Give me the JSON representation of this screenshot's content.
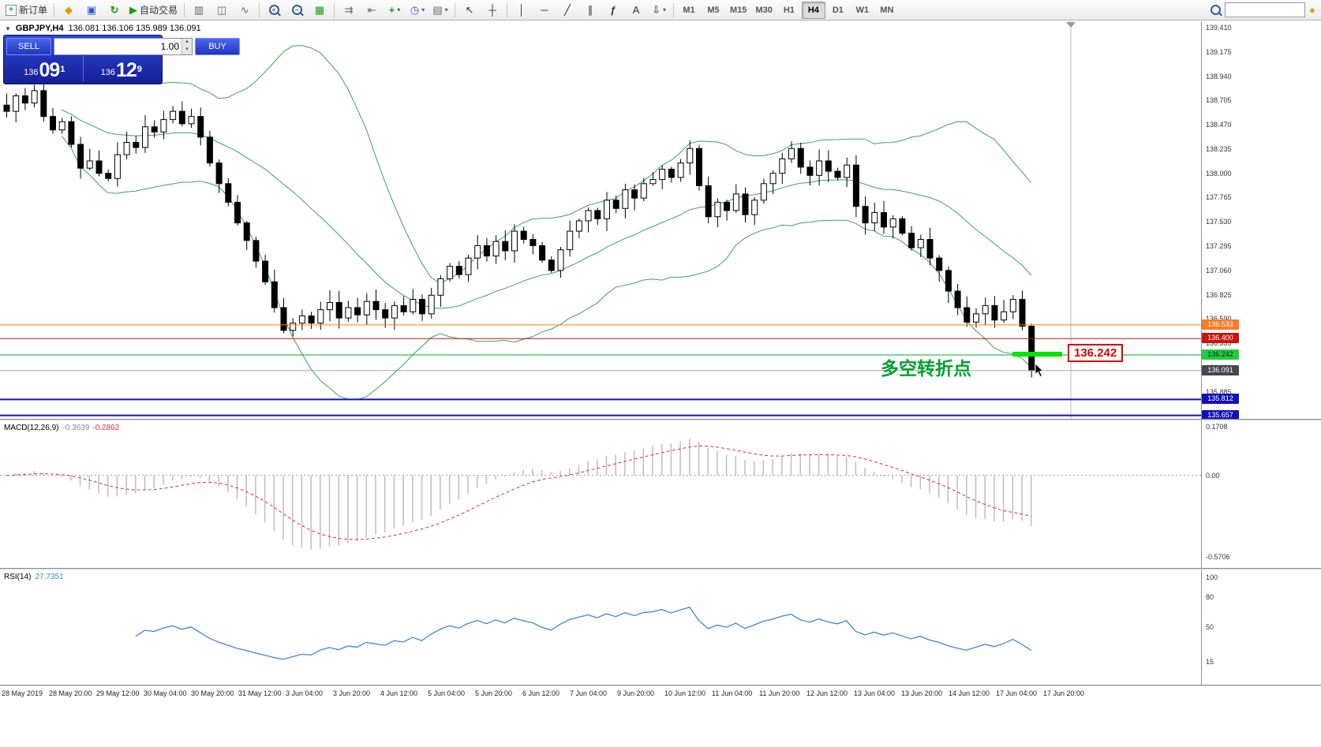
{
  "toolbar": {
    "new_order_label": "新订单",
    "auto_trading_label": "自动交易",
    "timeframes": [
      "M1",
      "M5",
      "M15",
      "M30",
      "H1",
      "H4",
      "D1",
      "W1",
      "MN"
    ],
    "active_timeframe": "H4",
    "search_placeholder": "",
    "icons": {
      "plus": "+",
      "minus": "−",
      "favorites": "◆",
      "data_window": "▣",
      "refresh": "↻",
      "auto_play": "▶",
      "bar_chart": "▥",
      "candlestick": "◫",
      "line_chart": "∿",
      "tile_windows": "▦",
      "auto_scroll": "⇉",
      "chart_shift": "⇤",
      "indicators_plus": "+",
      "periods_clock": "◷",
      "templates": "▤",
      "cursor": "↖",
      "crosshair": "┼",
      "vertical_line": "│",
      "horizontal_line": "─",
      "trend_line": "╱",
      "channel": "∥",
      "fibonacci": "ƒ",
      "text_tool": "A",
      "arrow_tool": "⇩",
      "shapes": "▭",
      "dropdown": "▾",
      "community": "●",
      "collapse": "▼",
      "spin_up": "▴",
      "spin_down": "▾"
    }
  },
  "trade_panel": {
    "sell_label": "SELL",
    "buy_label": "BUY",
    "volume": "1.00",
    "sell_price": {
      "prefix": "136",
      "big": "09",
      "sup": "1"
    },
    "buy_price": {
      "prefix": "136",
      "big": "12",
      "sup": "9"
    }
  },
  "chart": {
    "symbol_line": "GBPJPY,H4",
    "ohlc": "136.081 136.106 135.989 136.091",
    "annotation": "多空转折点",
    "price_tag": "136.242",
    "axis_ticks": [
      "139.410",
      "139.175",
      "138.940",
      "138.705",
      "138.470",
      "138.235",
      "138.000",
      "137.765",
      "137.530",
      "137.295",
      "137.060",
      "136.825",
      "136.590",
      "136.355",
      "136.120",
      "135.885",
      "135.650"
    ],
    "levels": [
      {
        "value": 136.533,
        "label": "136.533",
        "line_color": "#ff7a26",
        "chip_color": "#ff7a26",
        "chip_text": "#ffffff",
        "w": 1
      },
      {
        "value": 136.4,
        "label": "136.400",
        "line_color": "#cc1111",
        "chip_color": "#cc1111",
        "chip_text": "#ffffff",
        "w": 1
      },
      {
        "value": 136.242,
        "label": "136.242",
        "line_color": "#00a832",
        "chip_color": "#22cc44",
        "chip_text": "#062e06",
        "w": 1
      },
      {
        "value": 136.091,
        "label": "136.091",
        "line_color": "#a8a8a8",
        "chip_color": "#474753",
        "chip_text": "#ffffff",
        "w": 1
      },
      {
        "value": 135.812,
        "label": "135.812",
        "line_color": "#1111bb",
        "chip_color": "#1111bb",
        "chip_text": "#ffffff",
        "w": 2
      },
      {
        "value": 135.657,
        "label": "135.657",
        "line_color": "#1111bb",
        "chip_color": "#1111bb",
        "chip_text": "#ffffff",
        "w": 2
      }
    ]
  },
  "macd": {
    "label": "MACD(12,26,9)",
    "value_main": "-0.3639",
    "value_signal": "-0.2862",
    "axis": [
      "0.1708",
      "0.00",
      "-0.5706"
    ]
  },
  "rsi": {
    "label": "RSI(14)",
    "value": "27.7351",
    "axis": [
      "100",
      "80",
      "50",
      "15"
    ]
  },
  "time_axis": [
    "28 May 2019",
    "28 May 20:00",
    "29 May 12:00",
    "30 May 04:00",
    "30 May 20:00",
    "31 May 12:00",
    "3 Jun 04:00",
    "3 Jun 20:00",
    "4 Jun 12:00",
    "5 Jun 04:00",
    "5 Jun 20:00",
    "6 Jun 12:00",
    "7 Jun 04:00",
    "9 Jun 20:00",
    "10 Jun 12:00",
    "11 Jun 04:00",
    "11 Jun 20:00",
    "12 Jun 12:00",
    "13 Jun 04:00",
    "13 Jun 20:00",
    "14 Jun 12:00",
    "17 Jun 04:00",
    "17 Jun 20:00"
  ],
  "chart_data": {
    "type": "candlestick",
    "symbol": "GBPJPY",
    "timeframe": "H4",
    "current_bar": {
      "open": 136.081,
      "high": 136.106,
      "low": 135.989,
      "close": 136.091
    },
    "overlays": [
      "Bollinger Bands (20, 2.0)"
    ],
    "indicators": [
      "MACD(12,26,9)",
      "RSI(14)"
    ],
    "price_axis_range": [
      135.65,
      139.41
    ],
    "closes": [
      138.6,
      138.75,
      138.68,
      138.8,
      138.55,
      138.42,
      138.5,
      138.28,
      138.05,
      138.12,
      138.0,
      137.95,
      138.18,
      138.3,
      138.25,
      138.45,
      138.4,
      138.52,
      138.6,
      138.48,
      138.55,
      138.35,
      138.1,
      137.9,
      137.72,
      137.52,
      137.35,
      137.15,
      136.95,
      136.7,
      136.48,
      136.55,
      136.62,
      136.55,
      136.68,
      136.75,
      136.6,
      136.7,
      136.63,
      136.76,
      136.68,
      136.6,
      136.72,
      136.66,
      136.78,
      136.64,
      136.82,
      136.98,
      137.1,
      137.02,
      137.18,
      137.3,
      137.2,
      137.34,
      137.25,
      137.44,
      137.36,
      137.3,
      137.16,
      137.06,
      137.26,
      137.44,
      137.54,
      137.64,
      137.56,
      137.74,
      137.66,
      137.84,
      137.76,
      137.9,
      137.94,
      138.04,
      137.96,
      138.1,
      138.24,
      137.88,
      137.58,
      137.72,
      137.64,
      137.8,
      137.6,
      137.74,
      137.9,
      138.0,
      138.14,
      138.24,
      138.06,
      137.98,
      138.12,
      138.02,
      137.96,
      138.08,
      137.68,
      137.52,
      137.62,
      137.48,
      137.56,
      137.42,
      137.28,
      137.36,
      137.18,
      137.06,
      136.86,
      136.7,
      136.56,
      136.64,
      136.72,
      136.58,
      136.66,
      136.78,
      136.52,
      136.09
    ]
  }
}
